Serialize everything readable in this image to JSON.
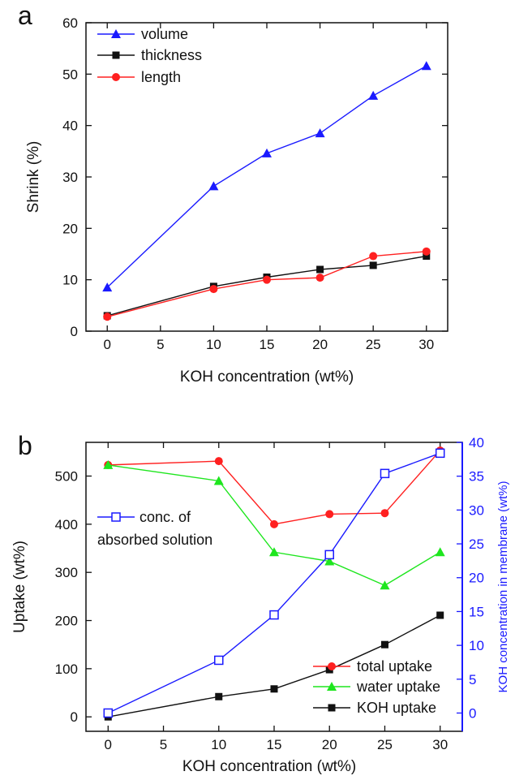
{
  "colors": {
    "blue": "#1a1aff",
    "black": "#111111",
    "red": "#ff2020",
    "green": "#1ee61e"
  },
  "chart_data": [
    {
      "panel": "a",
      "type": "line",
      "xlabel": "KOH concentration (wt%)",
      "ylabel": "Shrink (%)",
      "xlim": [
        -2,
        32
      ],
      "ylim": [
        0,
        60
      ],
      "xticks": [
        0,
        5,
        10,
        15,
        20,
        25,
        30
      ],
      "yticks": [
        0,
        10,
        20,
        30,
        40,
        50,
        60
      ],
      "legend_position": "top-left",
      "x": [
        0,
        10,
        15,
        20,
        25,
        30
      ],
      "series": [
        {
          "name": "volume",
          "color": "#1a1aff",
          "marker": "triangle",
          "values": [
            8.5,
            28.2,
            34.6,
            38.5,
            45.8,
            51.6
          ]
        },
        {
          "name": "thickness",
          "color": "#111111",
          "marker": "square",
          "values": [
            3.0,
            8.7,
            10.5,
            12.0,
            12.8,
            14.6
          ]
        },
        {
          "name": "length",
          "color": "#ff2020",
          "marker": "circle",
          "values": [
            2.8,
            8.2,
            10.0,
            10.4,
            14.6,
            15.5
          ]
        }
      ]
    },
    {
      "panel": "b",
      "type": "line",
      "xlabel": "KOH concentration (wt%)",
      "ylabel": "Uptake (wt%)",
      "y2label": "KOH concentration in membrane (wt%)",
      "xlim": [
        -2,
        32
      ],
      "ylim": [
        -30,
        570
      ],
      "y2lim": [
        -2.7,
        40
      ],
      "xticks": [
        0,
        5,
        10,
        15,
        20,
        25,
        30
      ],
      "yticks": [
        0,
        100,
        200,
        300,
        400,
        500
      ],
      "y2ticks": [
        0,
        5,
        10,
        15,
        20,
        25,
        30,
        35,
        40
      ],
      "x": [
        0,
        10,
        15,
        20,
        25,
        30
      ],
      "series": [
        {
          "name": "total uptake",
          "axis": "left",
          "color": "#ff2020",
          "marker": "circle",
          "values": [
            523,
            531,
            400,
            421,
            423,
            553
          ]
        },
        {
          "name": "water uptake",
          "axis": "left",
          "color": "#1ee61e",
          "marker": "triangle",
          "values": [
            523,
            490,
            342,
            323,
            273,
            342
          ]
        },
        {
          "name": "KOH uptake",
          "axis": "left",
          "color": "#111111",
          "marker": "square",
          "values": [
            0,
            42,
            58,
            98,
            150,
            211
          ]
        },
        {
          "name": "conc. of absorbed solution",
          "axis": "right",
          "color": "#1a1aff",
          "marker": "open-square",
          "values": [
            0.0,
            7.8,
            14.5,
            23.4,
            35.4,
            38.4
          ]
        }
      ],
      "legends": [
        {
          "position": "center-left",
          "entries": [
            "conc. of",
            "absorbed solution"
          ]
        },
        {
          "position": "bottom-right",
          "entries": [
            "total uptake",
            "water uptake",
            "KOH uptake"
          ]
        }
      ]
    }
  ]
}
